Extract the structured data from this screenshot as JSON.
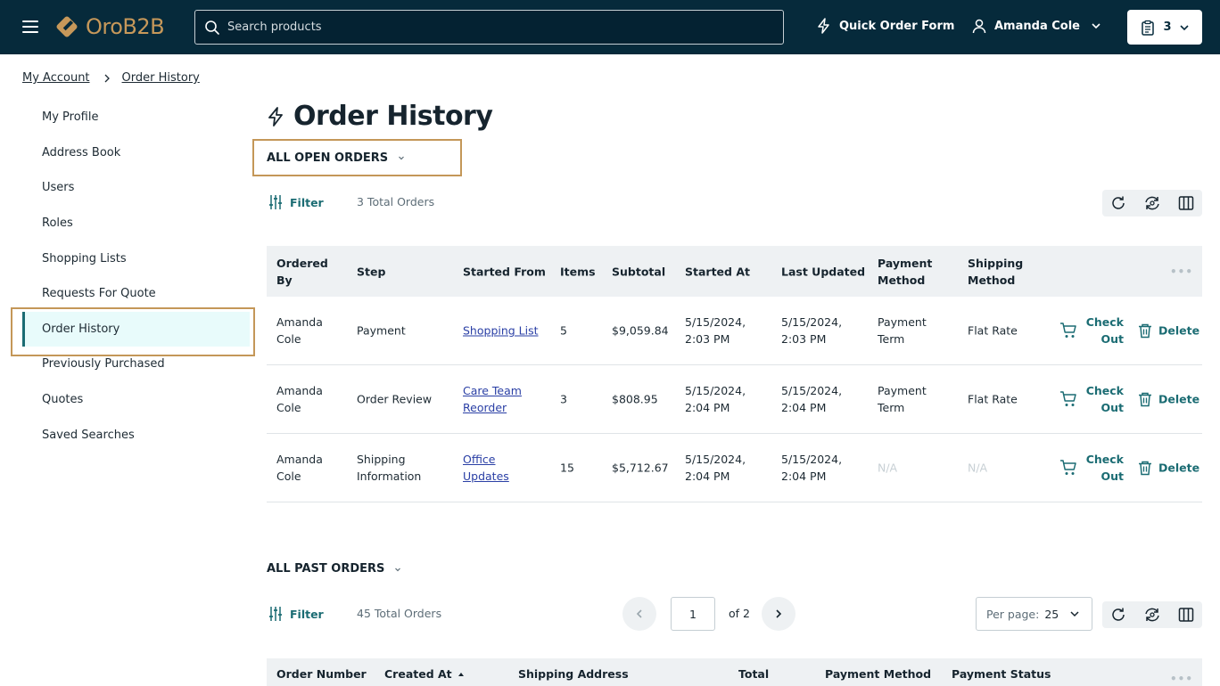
{
  "header": {
    "logo_text": "OroB2B",
    "search_placeholder": "Search products",
    "quick_order": "Quick Order Form",
    "user_name": "Amanda Cole",
    "cart_count": "3"
  },
  "breadcrumb": {
    "items": [
      "My Account",
      "Order History"
    ]
  },
  "sidebar": {
    "items": [
      {
        "label": "My Profile"
      },
      {
        "label": "Address Book"
      },
      {
        "label": "Users"
      },
      {
        "label": "Roles"
      },
      {
        "label": "Shopping Lists"
      },
      {
        "label": "Requests For Quote"
      },
      {
        "label": "Order History"
      },
      {
        "label": "Previously Purchased"
      },
      {
        "label": "Quotes"
      },
      {
        "label": "Saved Searches"
      }
    ],
    "active": "Order History"
  },
  "page": {
    "title": "Order History"
  },
  "open_orders": {
    "section_label": "ALL OPEN ORDERS",
    "filter_label": "Filter",
    "total_text": "3 Total Orders",
    "columns": [
      "Ordered By",
      "Step",
      "Started From",
      "Items",
      "Subtotal",
      "Started At",
      "Last Updated",
      "Payment Method",
      "Shipping Method"
    ],
    "rows": [
      {
        "ordered_by": "Amanda Cole",
        "step": "Payment",
        "started_from": "Shopping List",
        "items": "5",
        "subtotal": "$9,059.84",
        "started_at": "5/15/2024, 2:03 PM",
        "last_updated": "5/15/2024, 2:03 PM",
        "payment_method": "Payment Term",
        "shipping_method": "Flat Rate"
      },
      {
        "ordered_by": "Amanda Cole",
        "step": "Order Review",
        "started_from": "Care Team Reorder",
        "items": "3",
        "subtotal": "$808.95",
        "started_at": "5/15/2024, 2:04 PM",
        "last_updated": "5/15/2024, 2:04 PM",
        "payment_method": "Payment Term",
        "shipping_method": "Flat Rate"
      },
      {
        "ordered_by": "Amanda Cole",
        "step": "Shipping Information",
        "started_from": "Office Updates",
        "items": "15",
        "subtotal": "$5,712.67",
        "started_at": "5/15/2024, 2:04 PM",
        "last_updated": "5/15/2024, 2:04 PM",
        "payment_method": "N/A",
        "shipping_method": "N/A"
      }
    ],
    "actions": {
      "checkout": "Check Out",
      "delete": "Delete"
    }
  },
  "past_orders": {
    "section_label": "ALL PAST ORDERS",
    "filter_label": "Filter",
    "total_text": "45 Total Orders",
    "page_value": "1",
    "page_of": "of 2",
    "per_page_label": "Per page:",
    "per_page_value": "25",
    "columns": [
      "Order Number",
      "Created At",
      "Shipping Address",
      "Total",
      "Payment Method",
      "Payment Status"
    ]
  },
  "colors": {
    "header_bg": "#062a3b",
    "accent": "#1b6c73",
    "brand_gold": "#c6985a",
    "focus": "#c49758"
  }
}
